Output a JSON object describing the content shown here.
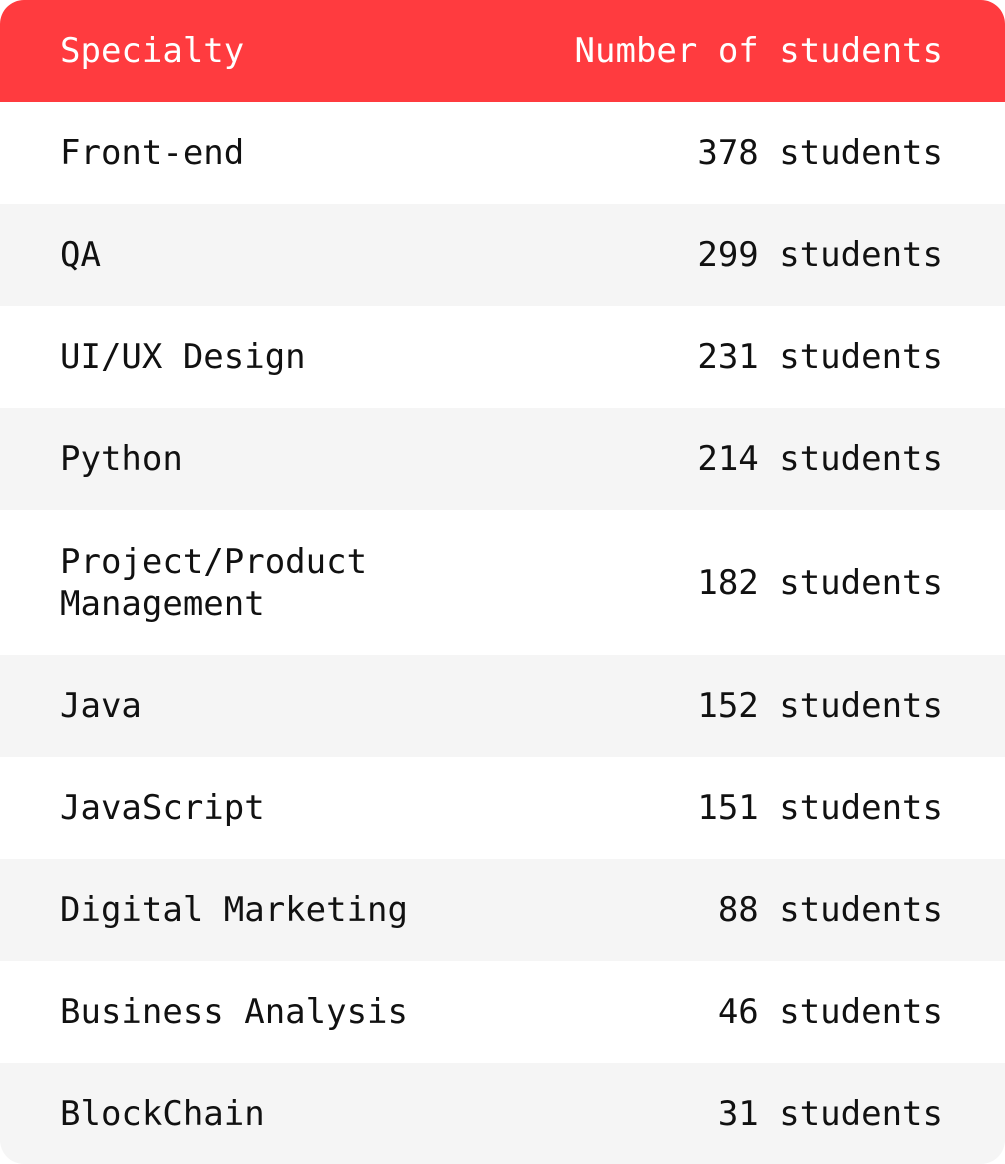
{
  "header": {
    "specialty_label": "Specialty",
    "count_label": "Number of students"
  },
  "rows": [
    {
      "specialty": "Front-end",
      "count": "378 students"
    },
    {
      "specialty": "QA",
      "count": "299 students"
    },
    {
      "specialty": "UI/UX Design",
      "count": "231 students"
    },
    {
      "specialty": "Python",
      "count": "214 students"
    },
    {
      "specialty": "Project/Product Management",
      "count": "182 students"
    },
    {
      "specialty": "Java",
      "count": "152 students"
    },
    {
      "specialty": "JavaScript",
      "count": "151 students"
    },
    {
      "specialty": "Digital Marketing",
      "count": " 88 students"
    },
    {
      "specialty": "Business Analysis",
      "count": " 46 students"
    },
    {
      "specialty": "BlockChain",
      "count": " 31 students"
    }
  ],
  "colors": {
    "header_bg": "#ff3b3f",
    "alt_row_bg": "#f5f5f5",
    "text": "#111111",
    "header_text": "#ffffff"
  }
}
